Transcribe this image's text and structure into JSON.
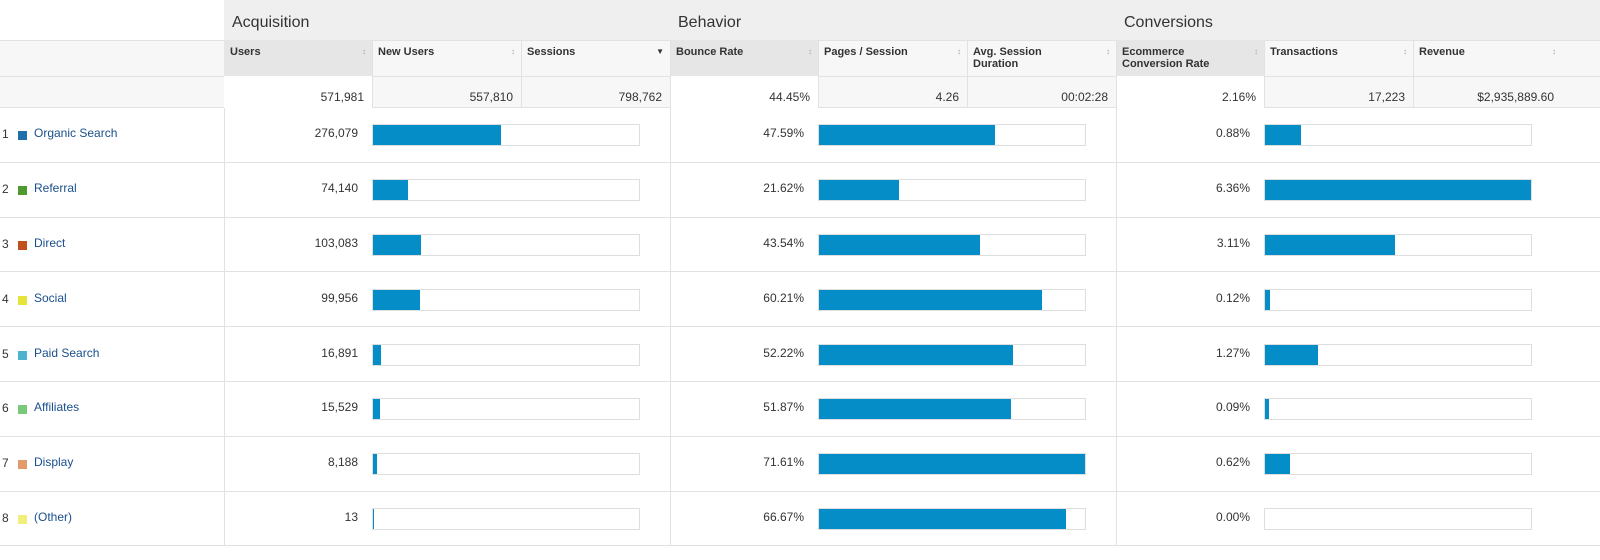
{
  "groups": [
    {
      "title": "Acquisition"
    },
    {
      "title": "Behavior"
    },
    {
      "title": "Conversions"
    }
  ],
  "headers": {
    "users": "Users",
    "new_users": "New Users",
    "sessions": "Sessions",
    "bounce_rate": "Bounce Rate",
    "pages_session": "Pages / Session",
    "avg_session_duration": "Avg. Session Duration",
    "ecommerce_conversion_rate": "Ecommerce Conversion Rate",
    "transactions": "Transactions",
    "revenue": "Revenue"
  },
  "sort_icon": "sort-arrows-icon",
  "sorted_column": "sessions",
  "totals": {
    "users": "571,981",
    "new_users": "557,810",
    "sessions": "798,762",
    "bounce_rate": "44.45%",
    "pages_session": "4.26",
    "avg_session_duration": "00:02:28",
    "ecommerce_conversion_rate": "2.16%",
    "transactions": "17,223",
    "revenue": "$2,935,889.60"
  },
  "rows": [
    {
      "rank": "1",
      "label": "Organic Search",
      "color": "#1f6fa8",
      "users": "276,079",
      "bounce": "47.59%",
      "conv": "0.88%",
      "users_bar": 0.48,
      "behavior_bar": 0.66,
      "conv_bar": 0.135
    },
    {
      "rank": "2",
      "label": "Referral",
      "color": "#4e9a2e",
      "users": "74,140",
      "bounce": "21.62%",
      "conv": "6.36%",
      "users_bar": 0.13,
      "behavior_bar": 0.3,
      "conv_bar": 1.0
    },
    {
      "rank": "3",
      "label": "Direct",
      "color": "#c0501e",
      "users": "103,083",
      "bounce": "43.54%",
      "conv": "3.11%",
      "users_bar": 0.18,
      "behavior_bar": 0.605,
      "conv_bar": 0.49
    },
    {
      "rank": "4",
      "label": "Social",
      "color": "#e4e43a",
      "users": "99,956",
      "bounce": "60.21%",
      "conv": "0.12%",
      "users_bar": 0.175,
      "behavior_bar": 0.84,
      "conv_bar": 0.018
    },
    {
      "rank": "5",
      "label": "Paid Search",
      "color": "#4cb3cf",
      "users": "16,891",
      "bounce": "52.22%",
      "conv": "1.27%",
      "users_bar": 0.03,
      "behavior_bar": 0.73,
      "conv_bar": 0.2
    },
    {
      "rank": "6",
      "label": "Affiliates",
      "color": "#79c97a",
      "users": "15,529",
      "bounce": "51.87%",
      "conv": "0.09%",
      "users_bar": 0.027,
      "behavior_bar": 0.72,
      "conv_bar": 0.014
    },
    {
      "rank": "7",
      "label": "Display",
      "color": "#e39b6b",
      "users": "8,188",
      "bounce": "71.61%",
      "conv": "0.62%",
      "users_bar": 0.014,
      "behavior_bar": 1.0,
      "conv_bar": 0.095
    },
    {
      "rank": "8",
      "label": "(Other)",
      "color": "#f1ef7b",
      "users": "13",
      "bounce": "66.67%",
      "conv": "0.00%",
      "users_bar": 0.004,
      "behavior_bar": 0.93,
      "conv_bar": 0.0
    }
  ]
}
